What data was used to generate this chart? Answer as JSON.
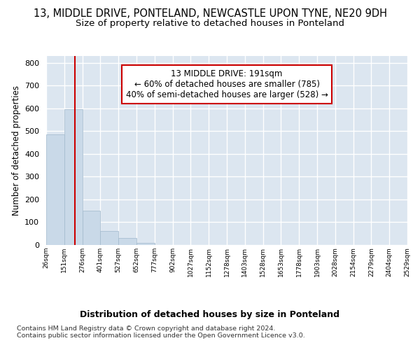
{
  "title1": "13, MIDDLE DRIVE, PONTELAND, NEWCASTLE UPON TYNE, NE20 9DH",
  "title2": "Size of property relative to detached houses in Ponteland",
  "xlabel": "Distribution of detached houses by size in Ponteland",
  "ylabel": "Number of detached properties",
  "bar_heights": [
    485,
    595,
    150,
    62,
    30,
    10,
    0,
    0,
    0,
    0,
    0,
    0,
    0,
    0,
    0,
    0,
    0,
    0,
    0,
    0
  ],
  "bin_labels": [
    "26sqm",
    "151sqm",
    "276sqm",
    "401sqm",
    "527sqm",
    "652sqm",
    "777sqm",
    "902sqm",
    "1027sqm",
    "1152sqm",
    "1278sqm",
    "1403sqm",
    "1528sqm",
    "1653sqm",
    "1778sqm",
    "1903sqm",
    "2028sqm",
    "2154sqm",
    "2279sqm",
    "2404sqm",
    "2529sqm"
  ],
  "n_bins": 20,
  "bar_color": "#c9d9e8",
  "bar_edgecolor": "#a0b8cc",
  "vline_x": 1.6,
  "vline_color": "#cc0000",
  "annotation_text": "13 MIDDLE DRIVE: 191sqm\n← 60% of detached houses are smaller (785)\n40% of semi-detached houses are larger (528) →",
  "annotation_box_edgecolor": "#cc0000",
  "annotation_box_facecolor": "#ffffff",
  "ylim": [
    0,
    830
  ],
  "yticks": [
    0,
    100,
    200,
    300,
    400,
    500,
    600,
    700,
    800
  ],
  "footer_text": "Contains HM Land Registry data © Crown copyright and database right 2024.\nContains public sector information licensed under the Open Government Licence v3.0.",
  "bg_color": "#ffffff",
  "plot_bg_color": "#dce6f0",
  "grid_color": "#ffffff",
  "title1_fontsize": 10.5,
  "title2_fontsize": 9.5,
  "xlabel_fontsize": 9,
  "ylabel_fontsize": 8.5
}
